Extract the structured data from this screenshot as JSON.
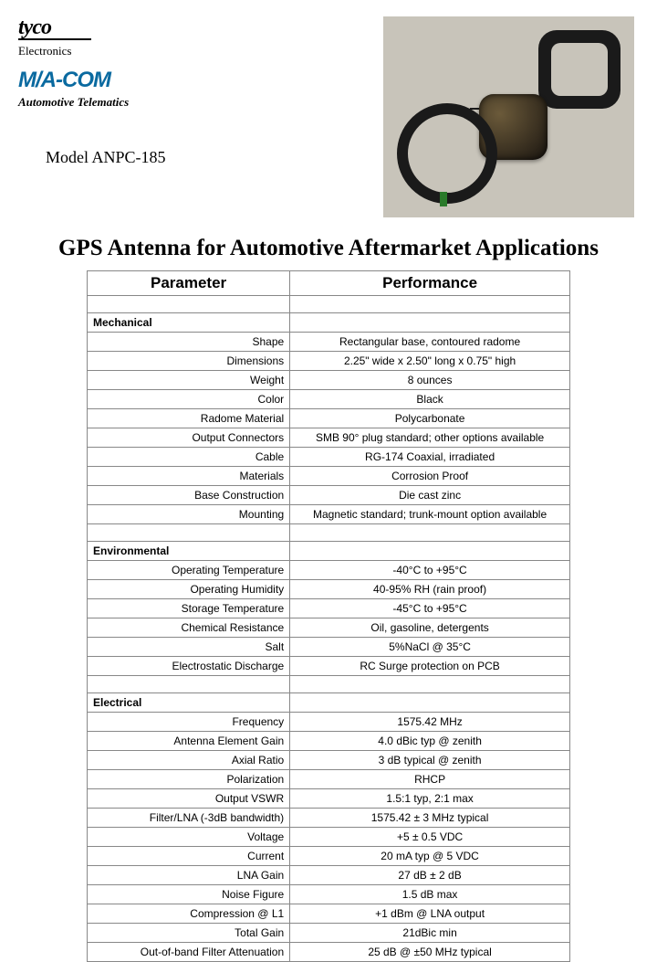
{
  "logo": {
    "tyco": "tyco",
    "electronics": "Electronics",
    "macom": "M/A-COM",
    "telematics": "Automotive Telematics"
  },
  "model": "Model ANPC-185",
  "title": "GPS Antenna for Automotive Aftermarket Applications",
  "table": {
    "col1": "Parameter",
    "col2": "Performance",
    "sections": [
      {
        "name": "Mechanical",
        "rows": [
          {
            "p": "Shape",
            "v": "Rectangular base, contoured radome"
          },
          {
            "p": "Dimensions",
            "v": "2.25\" wide x 2.50\" long x 0.75\" high"
          },
          {
            "p": "Weight",
            "v": "8 ounces"
          },
          {
            "p": "Color",
            "v": "Black"
          },
          {
            "p": "Radome Material",
            "v": "Polycarbonate"
          },
          {
            "p": "Output Connectors",
            "v": "SMB 90° plug standard; other options available"
          },
          {
            "p": "Cable",
            "v": "RG-174 Coaxial, irradiated"
          },
          {
            "p": "Materials",
            "v": "Corrosion Proof"
          },
          {
            "p": "Base Construction",
            "v": "Die cast zinc"
          },
          {
            "p": "Mounting",
            "v": "Magnetic standard; trunk-mount option available"
          }
        ]
      },
      {
        "name": "Environmental",
        "rows": [
          {
            "p": "Operating Temperature",
            "v": "-40°C to +95°C"
          },
          {
            "p": "Operating Humidity",
            "v": "40-95% RH (rain proof)"
          },
          {
            "p": "Storage Temperature",
            "v": "-45°C to +95°C"
          },
          {
            "p": "Chemical Resistance",
            "v": "Oil, gasoline, detergents"
          },
          {
            "p": "Salt",
            "v": "5%NaCl @ 35°C"
          },
          {
            "p": "Electrostatic Discharge",
            "v": "RC Surge protection on PCB"
          }
        ]
      },
      {
        "name": "Electrical",
        "rows": [
          {
            "p": "Frequency",
            "v": "1575.42 MHz"
          },
          {
            "p": "Antenna Element Gain",
            "v": "4.0 dBic typ @ zenith"
          },
          {
            "p": "Axial Ratio",
            "v": "3 dB typical @ zenith"
          },
          {
            "p": "Polarization",
            "v": "RHCP"
          },
          {
            "p": "Output VSWR",
            "v": "1.5:1 typ, 2:1 max"
          },
          {
            "p": "Filter/LNA  (-3dB bandwidth)",
            "v": "1575.42 ± 3 MHz typical"
          },
          {
            "p": "Voltage",
            "v": "+5 ± 0.5 VDC"
          },
          {
            "p": "Current",
            "v": "20 mA typ @ 5 VDC"
          },
          {
            "p": "LNA Gain",
            "v": "27 dB ± 2 dB"
          },
          {
            "p": "Noise Figure",
            "v": "1.5 dB max"
          },
          {
            "p": "Compression @ L1",
            "v": "+1 dBm @ LNA output"
          },
          {
            "p": "Total Gain",
            "v": "21dBic min"
          },
          {
            "p": "Out-of-band Filter Attenuation",
            "v": "25 dB @ ±50 MHz typical"
          }
        ]
      }
    ]
  }
}
